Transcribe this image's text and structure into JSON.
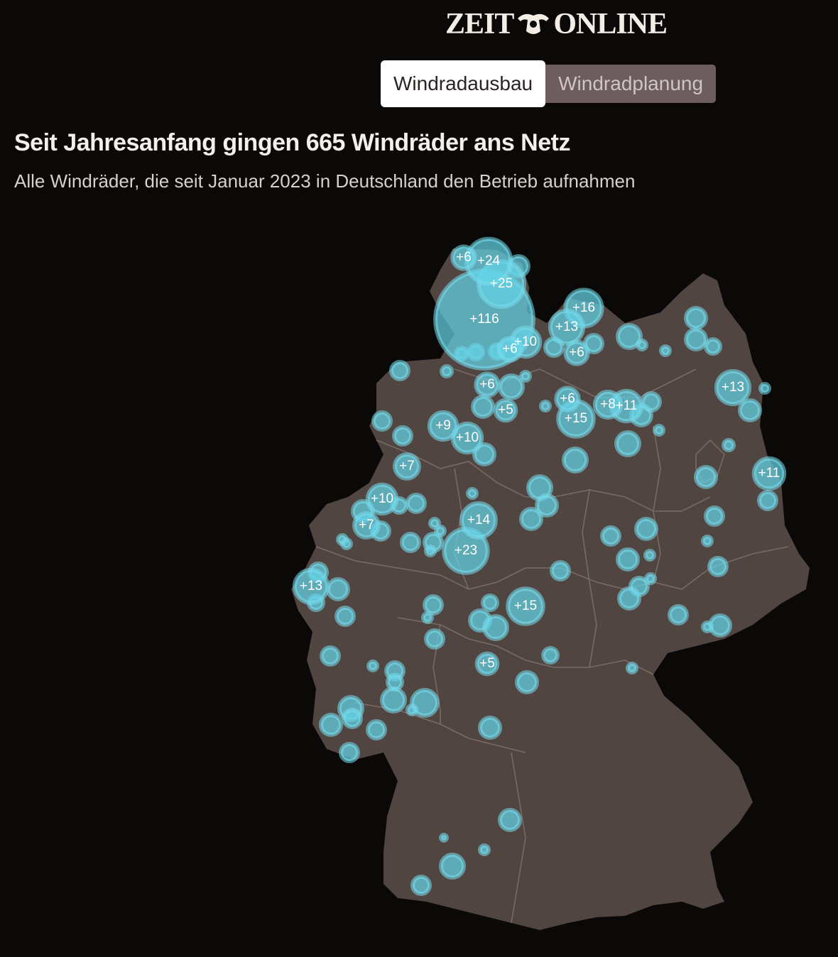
{
  "logo": {
    "left": "ZEIT",
    "right": "ONLINE"
  },
  "tabs": [
    {
      "label": "Windradausbau",
      "active": true
    },
    {
      "label": "Windradplanung",
      "active": false
    }
  ],
  "title": "Seit Jahresanfang gingen 665 Windräder ans Netz",
  "subtitle": "Alle Windräder, die seit Januar 2023 in Deutschland den Betrieb aufnahmen",
  "colors": {
    "background": "#0a0908",
    "land": "#514541",
    "borders": "#7a6a66",
    "bubble": "#62cfe2"
  },
  "labeled_clusters": [
    {
      "label": "+116",
      "count": 116
    },
    {
      "label": "+25",
      "count": 25
    },
    {
      "label": "+24",
      "count": 24
    },
    {
      "label": "+23",
      "count": 23
    },
    {
      "label": "+16",
      "count": 16
    },
    {
      "label": "+15",
      "count": 15
    },
    {
      "label": "+15",
      "count": 15
    },
    {
      "label": "+14",
      "count": 14
    },
    {
      "label": "+13",
      "count": 13
    },
    {
      "label": "+13",
      "count": 13
    },
    {
      "label": "+13",
      "count": 13
    },
    {
      "label": "+11",
      "count": 11
    },
    {
      "label": "+11",
      "count": 11
    },
    {
      "label": "+10",
      "count": 10
    },
    {
      "label": "+10",
      "count": 10
    },
    {
      "label": "+10",
      "count": 10
    },
    {
      "label": "+9",
      "count": 9
    },
    {
      "label": "+8",
      "count": 8
    },
    {
      "label": "+7",
      "count": 7
    },
    {
      "label": "+7",
      "count": 7
    },
    {
      "label": "+6",
      "count": 6
    },
    {
      "label": "+6",
      "count": 6
    },
    {
      "label": "+6",
      "count": 6
    },
    {
      "label": "+6",
      "count": 6
    },
    {
      "label": "+6",
      "count": 6
    },
    {
      "label": "+5",
      "count": 5
    },
    {
      "label": "+5",
      "count": 5
    }
  ]
}
